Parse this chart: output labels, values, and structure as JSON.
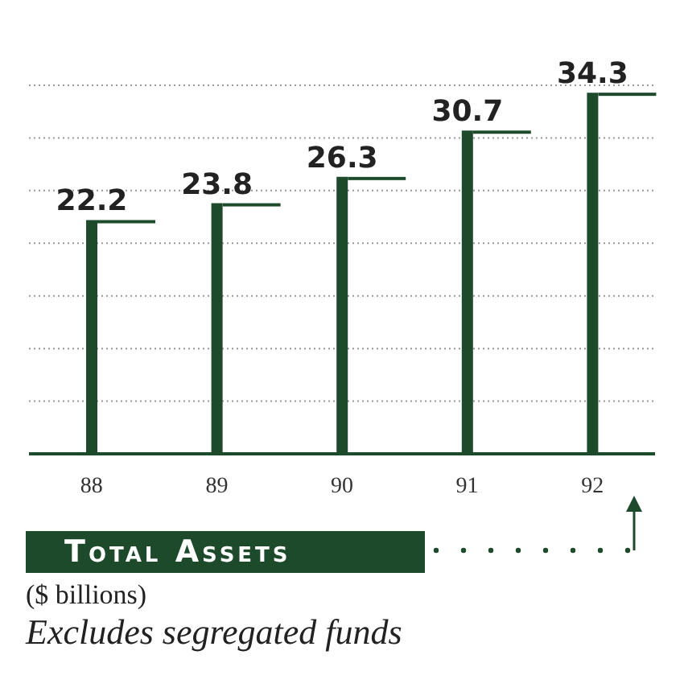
{
  "chart_data": {
    "type": "bar",
    "title": "Total Assets",
    "categories": [
      "88",
      "89",
      "90",
      "91",
      "92"
    ],
    "values": [
      22.2,
      23.8,
      26.3,
      30.7,
      34.3
    ],
    "color": "#1e4a2c",
    "data_labels": true,
    "grid": "y",
    "legend": false,
    "tick_labels": "x",
    "annotations": [
      "($ billions)",
      "Excludes segregated funds"
    ]
  }
}
